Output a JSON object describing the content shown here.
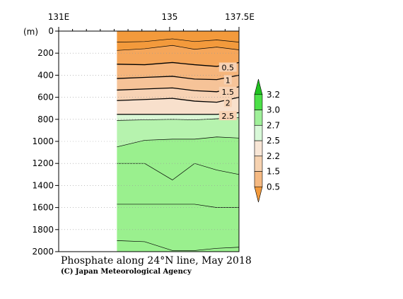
{
  "chart_data": {
    "type": "heatmap",
    "title": "Phosphate along 24°N line, May 2018",
    "credit": "(C) Japan Meteorological Agency",
    "y_unit": "(m)",
    "x_ticks": [
      "131E",
      "135",
      "137.5E"
    ],
    "x_tick_values": [
      131,
      135,
      137.5
    ],
    "xlim": [
      131,
      137.5
    ],
    "data_xlim": [
      133.1,
      137.5
    ],
    "y_ticks": [
      "0",
      "200",
      "400",
      "600",
      "800",
      "1000",
      "1200",
      "1400",
      "1600",
      "1800",
      "2000"
    ],
    "y_tick_values": [
      0,
      200,
      400,
      600,
      800,
      1000,
      1200,
      1400,
      1600,
      1800,
      2000
    ],
    "ylim": [
      0,
      2000
    ],
    "y_inverted": true,
    "grid": true,
    "colorbar": {
      "levels": [
        0.5,
        1.5,
        2.2,
        2.5,
        2.7,
        3.0,
        3.2
      ],
      "labels": [
        "0.5",
        "1.5",
        "2.2",
        "2.5",
        "2.7",
        "3.0",
        "3.2"
      ],
      "colors": [
        "#f39a3c",
        "#f5b982",
        "#f6d2b0",
        "#f8e6d6",
        "#d8f8d8",
        "#a0f09a",
        "#4ce048",
        "#1fc21f"
      ]
    },
    "layers": [
      {
        "value": 0.0,
        "depths": [
          0,
          0,
          0,
          0,
          0,
          0
        ]
      },
      {
        "value": 0.1,
        "depths": [
          100,
          95,
          70,
          95,
          80,
          100
        ]
      },
      {
        "value": 0.2,
        "depths": [
          175,
          160,
          130,
          165,
          145,
          170
        ]
      },
      {
        "value": 0.5,
        "depths": [
          300,
          305,
          285,
          305,
          320,
          285
        ]
      },
      {
        "value": 1.0,
        "depths": [
          430,
          420,
          410,
          435,
          440,
          400
        ]
      },
      {
        "value": 1.5,
        "depths": [
          535,
          525,
          515,
          540,
          550,
          505
        ]
      },
      {
        "value": 2.0,
        "depths": [
          630,
          620,
          610,
          635,
          645,
          600
        ]
      },
      {
        "value": 2.5,
        "depths": [
          755,
          755,
          755,
          755,
          755,
          740
        ]
      },
      {
        "value": 2.7,
        "depths": [
          810,
          805,
          800,
          805,
          795,
          785
        ]
      },
      {
        "value": 2.9,
        "depths": [
          1050,
          990,
          980,
          980,
          960,
          970
        ]
      },
      {
        "value": 3.0,
        "depths": [
          1200,
          1200,
          1350,
          1200,
          1260,
          1300
        ]
      },
      {
        "value": 3.05,
        "depths": [
          1570,
          1570,
          1570,
          1570,
          1600,
          1600
        ]
      },
      {
        "value": 3.1,
        "depths": [
          1900,
          1910,
          1990,
          1990,
          1970,
          1960
        ]
      }
    ],
    "layer_x": [
      133.1,
      134.1,
      135.1,
      135.9,
      136.7,
      137.5
    ],
    "contour_labels": [
      {
        "text": "0.5",
        "x": 137.1,
        "y": 330
      },
      {
        "text": "1",
        "x": 137.1,
        "y": 445
      },
      {
        "text": "1.5",
        "x": 137.1,
        "y": 550
      },
      {
        "text": "2",
        "x": 137.1,
        "y": 650
      },
      {
        "text": "2.5",
        "x": 137.1,
        "y": 770
      }
    ]
  }
}
